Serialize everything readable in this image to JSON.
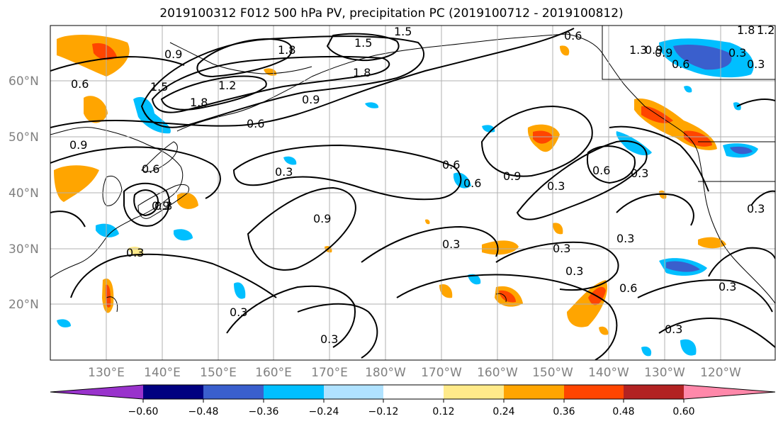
{
  "title": "2019100312 F012 500 hPa PV, precipitation PC (2019100712 - 2019100812)",
  "lat_ticks": [
    "60°N",
    "50°N",
    "40°N",
    "30°N",
    "20°N"
  ],
  "lon_ticks": [
    "130°E",
    "140°E",
    "150°E",
    "160°E",
    "170°E",
    "180°W",
    "170°W",
    "160°W",
    "150°W",
    "140°W",
    "130°W",
    "120°W"
  ],
  "colorbar": {
    "colors": [
      "#9933cc",
      "#000080",
      "#3a5fcd",
      "#00bfff",
      "#b0e2ff",
      "#ffffff",
      "#ffea8a",
      "#ffa500",
      "#ff4500",
      "#b22222",
      "#ff88aa"
    ],
    "tick_labels": [
      "−0.60",
      "−0.48",
      "−0.36",
      "−0.24",
      "−0.12",
      "0.12",
      "0.24",
      "0.36",
      "0.48",
      "0.60"
    ]
  },
  "contour_labels": [
    "0.6",
    "0.9",
    "1.2",
    "1.5",
    "1.8",
    "1.5",
    "1.8",
    "1.8",
    "0.9",
    "1.2",
    "1.5",
    "1.8",
    "0.9",
    "0.6",
    "0.6",
    "0.9",
    "0.6",
    "0.3",
    "0.3",
    "0.9",
    "0.3",
    "0.3",
    "0.6",
    "0.9",
    "0.6",
    "0.3",
    "0.3",
    "0.3",
    "0.3",
    "0.3",
    "0.6",
    "0.3",
    "0.3",
    "0.3",
    "0.3",
    "0.6",
    "0.3",
    "1.3",
    "0.9",
    "0.6",
    "0.3",
    "0.3",
    "0.9"
  ]
}
